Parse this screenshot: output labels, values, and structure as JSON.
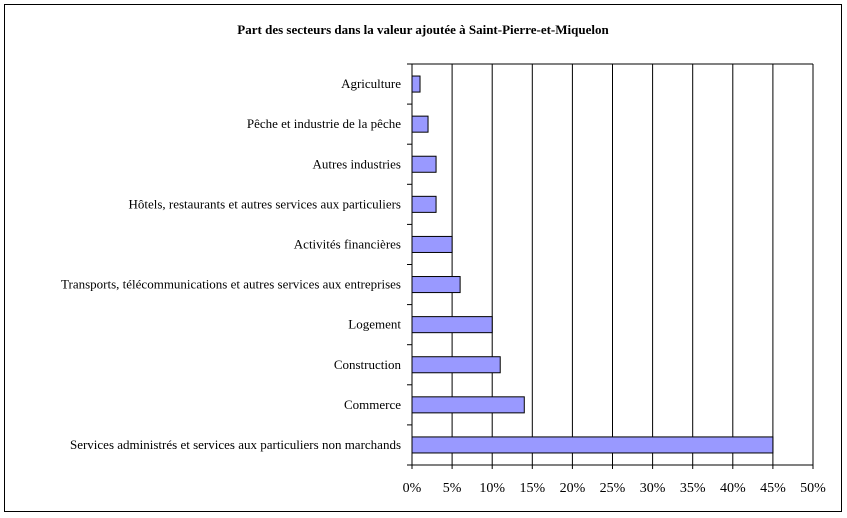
{
  "chart_data": {
    "type": "bar",
    "orientation": "horizontal",
    "title": "Part des secteurs dans la valeur ajoutée à Saint-Pierre-et-Miquelon",
    "categories": [
      "Agriculture",
      "Pêche et industrie de la pêche",
      "Autres industries",
      "Hôtels, restaurants et autres services aux particuliers",
      "Activités financières",
      "Transports, télécommunications et autres services aux entreprises",
      "Logement",
      "Construction",
      "Commerce",
      "Services administrés et services aux particuliers non marchands"
    ],
    "values": [
      1,
      2,
      3,
      3,
      5,
      6,
      10,
      11,
      14,
      45
    ],
    "unit": "%",
    "xlim": [
      0,
      50
    ],
    "xticks": [
      "0%",
      "5%",
      "10%",
      "15%",
      "20%",
      "25%",
      "30%",
      "35%",
      "40%",
      "45%",
      "50%"
    ],
    "grid": "vertical",
    "legend": "none",
    "bar_color": "#9999FF"
  }
}
